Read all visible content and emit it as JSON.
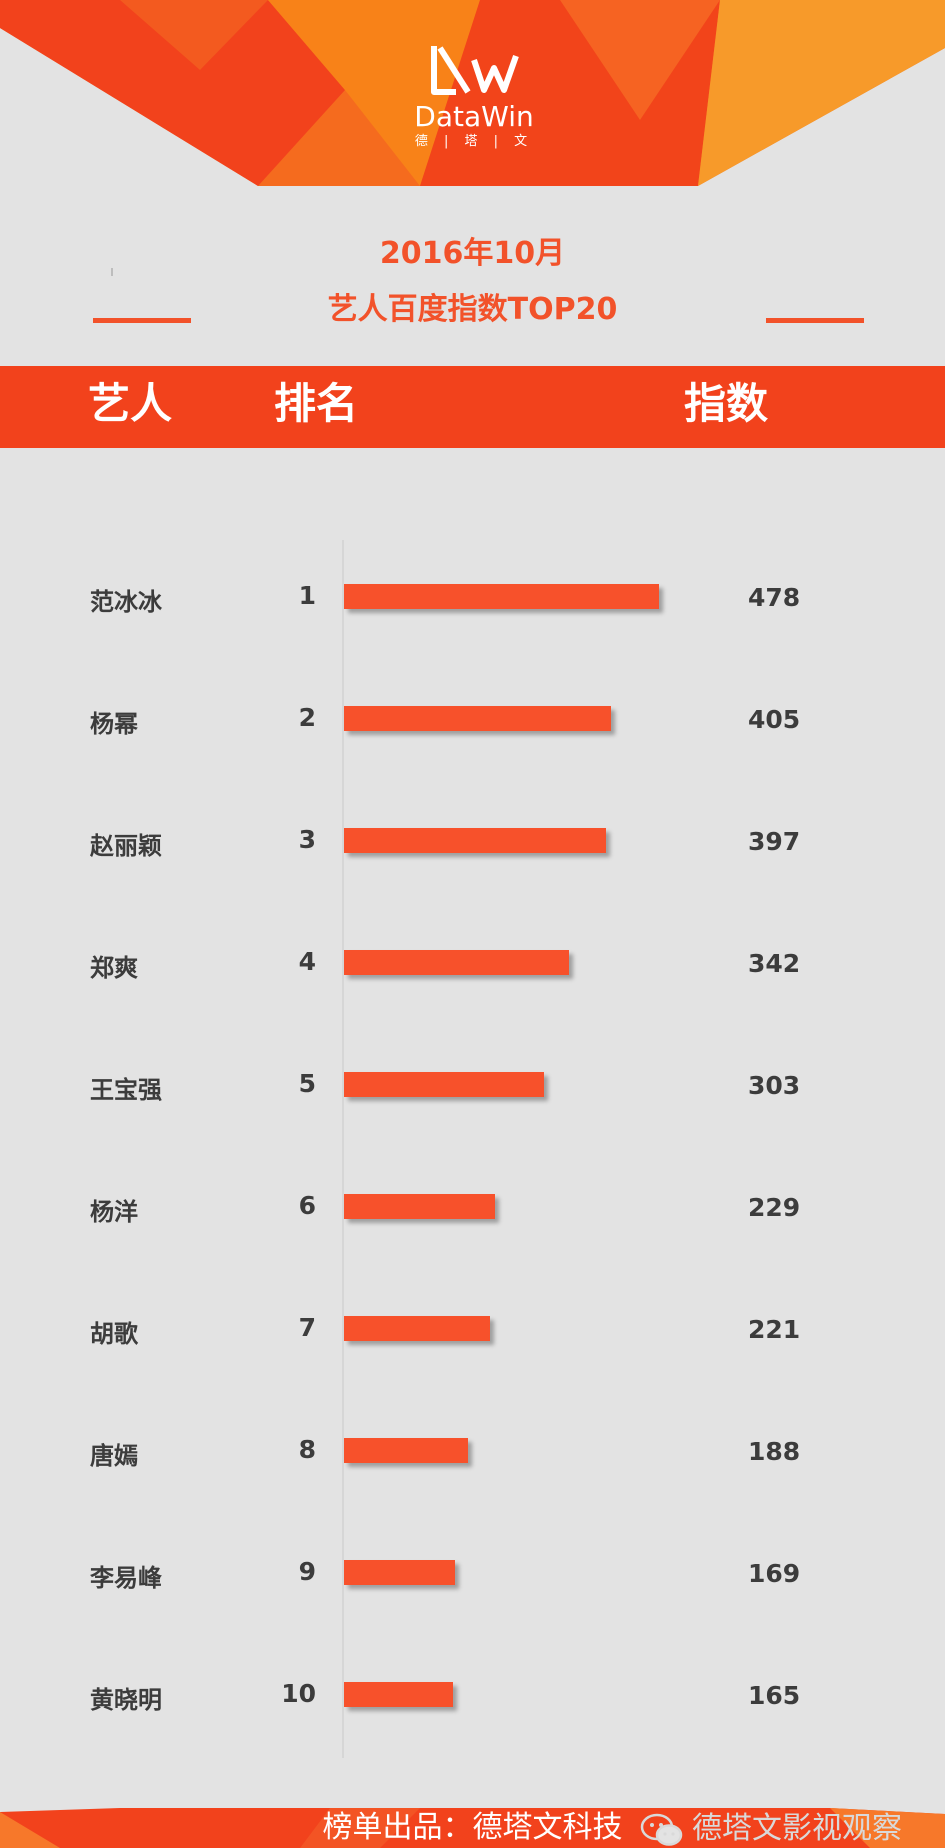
{
  "brand": {
    "name": "DataWin",
    "subtitle": "德 | 塔 | 文",
    "colors": {
      "primary": "#f2421c",
      "bar": "#f7512b",
      "title": "#f2522a",
      "background": "#e3e3e3"
    }
  },
  "title": {
    "line1": "2016年10月",
    "line2": "艺人百度指数TOP20"
  },
  "header": {
    "artist": "艺人",
    "rank": "排名",
    "index": "指数"
  },
  "chart_data": {
    "type": "bar",
    "orientation": "horizontal",
    "title": "艺人百度指数TOP20",
    "categories": [
      "范冰冰",
      "杨幂",
      "赵丽颖",
      "郑爽",
      "王宝强",
      "杨洋",
      "胡歌",
      "唐嫣",
      "李易峰",
      "黄晓明"
    ],
    "ranks": [
      "1",
      "2",
      "3",
      "4",
      "5",
      "6",
      "7",
      "8",
      "9",
      "10"
    ],
    "values": [
      478,
      405,
      397,
      342,
      303,
      229,
      221,
      188,
      169,
      165
    ],
    "xlim": [
      0,
      478
    ],
    "grid": false,
    "legend": "none"
  },
  "footer": {
    "text": "榜单出品：德塔文科技",
    "watermark": "德塔文影视观察",
    "watermark_icon": "wechat-icon"
  }
}
